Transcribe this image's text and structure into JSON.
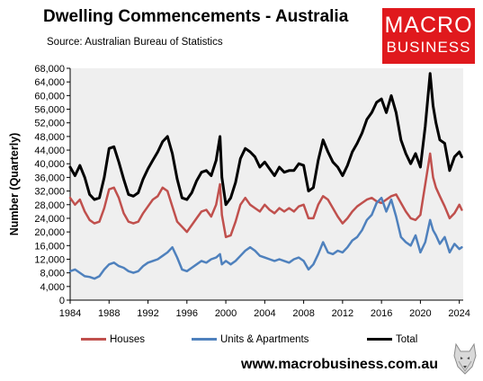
{
  "header": {
    "title": "Dwelling Commencements - Australia",
    "source": "Source:  Australian Bureau of Statistics"
  },
  "logo": {
    "line1": "MACRO",
    "line2": "BUSINESS",
    "color": "#e0191d"
  },
  "footer": {
    "website": "www.macrobusiness.com.au",
    "wolf_icon": "wolf-logo-icon"
  },
  "chart_data": {
    "type": "line",
    "title": "Dwelling Commencements - Australia",
    "ylabel": "Number (Quarterly)",
    "xlabel": "",
    "xlim": [
      1984,
      2024.4
    ],
    "ylim": [
      0,
      68000
    ],
    "x_ticks": [
      1984,
      1988,
      1992,
      1996,
      2000,
      2004,
      2008,
      2012,
      2016,
      2020,
      2024
    ],
    "y_ticks": [
      0,
      4000,
      8000,
      12000,
      16000,
      20000,
      24000,
      28000,
      32000,
      36000,
      40000,
      44000,
      48000,
      52000,
      56000,
      60000,
      64000,
      68000
    ],
    "y_tick_labels": [
      "0",
      "4,000",
      "8,000",
      "12,000",
      "16,000",
      "20,000",
      "24,000",
      "28,000",
      "32,000",
      "36,000",
      "40,000",
      "44,000",
      "48,000",
      "52,000",
      "56,000",
      "60,000",
      "64,000",
      "68,000"
    ],
    "grid": false,
    "background": "#efefef",
    "legend_position": "bottom",
    "series": [
      {
        "name": "Houses",
        "color": "#c0504d",
        "points": [
          [
            1984.0,
            30000
          ],
          [
            1984.5,
            28000
          ],
          [
            1985.0,
            29500
          ],
          [
            1985.5,
            26000
          ],
          [
            1986.0,
            23500
          ],
          [
            1986.5,
            22500
          ],
          [
            1987.0,
            23000
          ],
          [
            1987.5,
            27000
          ],
          [
            1988.0,
            32500
          ],
          [
            1988.5,
            33000
          ],
          [
            1989.0,
            30000
          ],
          [
            1989.5,
            25500
          ],
          [
            1990.0,
            23000
          ],
          [
            1990.5,
            22500
          ],
          [
            1991.0,
            23000
          ],
          [
            1991.5,
            25500
          ],
          [
            1992.0,
            27500
          ],
          [
            1992.5,
            29500
          ],
          [
            1993.0,
            30500
          ],
          [
            1993.5,
            33000
          ],
          [
            1994.0,
            32000
          ],
          [
            1994.5,
            27500
          ],
          [
            1995.0,
            23000
          ],
          [
            1995.5,
            21500
          ],
          [
            1996.0,
            20000
          ],
          [
            1996.5,
            22000
          ],
          [
            1997.0,
            24000
          ],
          [
            1997.5,
            26000
          ],
          [
            1998.0,
            26500
          ],
          [
            1998.5,
            24500
          ],
          [
            1999.0,
            28000
          ],
          [
            1999.4,
            34000
          ],
          [
            1999.6,
            25000
          ],
          [
            2000.0,
            18500
          ],
          [
            2000.5,
            19000
          ],
          [
            2001.0,
            23000
          ],
          [
            2001.5,
            28000
          ],
          [
            2002.0,
            30000
          ],
          [
            2002.5,
            28000
          ],
          [
            2003.0,
            27000
          ],
          [
            2003.5,
            26000
          ],
          [
            2004.0,
            28000
          ],
          [
            2004.5,
            26500
          ],
          [
            2005.0,
            25500
          ],
          [
            2005.5,
            27000
          ],
          [
            2006.0,
            26000
          ],
          [
            2006.5,
            27000
          ],
          [
            2007.0,
            26000
          ],
          [
            2007.5,
            27500
          ],
          [
            2008.0,
            28000
          ],
          [
            2008.5,
            24000
          ],
          [
            2009.0,
            24000
          ],
          [
            2009.5,
            28000
          ],
          [
            2010.0,
            30500
          ],
          [
            2010.5,
            29500
          ],
          [
            2011.0,
            27000
          ],
          [
            2011.5,
            24500
          ],
          [
            2012.0,
            22500
          ],
          [
            2012.5,
            24000
          ],
          [
            2013.0,
            26000
          ],
          [
            2013.5,
            27500
          ],
          [
            2014.0,
            28500
          ],
          [
            2014.5,
            29500
          ],
          [
            2015.0,
            30000
          ],
          [
            2015.5,
            29000
          ],
          [
            2016.0,
            28500
          ],
          [
            2016.5,
            29500
          ],
          [
            2017.0,
            30500
          ],
          [
            2017.5,
            31000
          ],
          [
            2018.0,
            28500
          ],
          [
            2018.5,
            26000
          ],
          [
            2019.0,
            24000
          ],
          [
            2019.5,
            23500
          ],
          [
            2020.0,
            25000
          ],
          [
            2020.5,
            34000
          ],
          [
            2021.0,
            43000
          ],
          [
            2021.3,
            36000
          ],
          [
            2021.6,
            33000
          ],
          [
            2022.0,
            30500
          ],
          [
            2022.5,
            27500
          ],
          [
            2023.0,
            24000
          ],
          [
            2023.5,
            25500
          ],
          [
            2024.0,
            28000
          ],
          [
            2024.25,
            26500
          ]
        ]
      },
      {
        "name": "Units & Apartments",
        "color": "#4f81bd",
        "points": [
          [
            1984.0,
            8500
          ],
          [
            1984.5,
            9000
          ],
          [
            1985.0,
            8000
          ],
          [
            1985.5,
            7000
          ],
          [
            1986.0,
            6800
          ],
          [
            1986.5,
            6300
          ],
          [
            1987.0,
            7000
          ],
          [
            1987.5,
            9000
          ],
          [
            1988.0,
            10500
          ],
          [
            1988.5,
            11000
          ],
          [
            1989.0,
            10000
          ],
          [
            1989.5,
            9500
          ],
          [
            1990.0,
            8500
          ],
          [
            1990.5,
            8000
          ],
          [
            1991.0,
            8500
          ],
          [
            1991.5,
            10000
          ],
          [
            1992.0,
            11000
          ],
          [
            1992.5,
            11500
          ],
          [
            1993.0,
            12000
          ],
          [
            1993.5,
            13000
          ],
          [
            1994.0,
            14000
          ],
          [
            1994.5,
            15500
          ],
          [
            1995.0,
            12500
          ],
          [
            1995.5,
            9000
          ],
          [
            1996.0,
            8500
          ],
          [
            1996.5,
            9500
          ],
          [
            1997.0,
            10500
          ],
          [
            1997.5,
            11500
          ],
          [
            1998.0,
            11000
          ],
          [
            1998.5,
            12000
          ],
          [
            1999.0,
            12500
          ],
          [
            1999.4,
            13500
          ],
          [
            1999.6,
            10500
          ],
          [
            2000.0,
            11500
          ],
          [
            2000.5,
            10500
          ],
          [
            2001.0,
            11500
          ],
          [
            2001.5,
            13000
          ],
          [
            2002.0,
            14500
          ],
          [
            2002.5,
            15500
          ],
          [
            2003.0,
            14500
          ],
          [
            2003.5,
            13000
          ],
          [
            2004.0,
            12500
          ],
          [
            2004.5,
            12000
          ],
          [
            2005.0,
            11500
          ],
          [
            2005.5,
            12000
          ],
          [
            2006.0,
            11500
          ],
          [
            2006.5,
            11000
          ],
          [
            2007.0,
            12000
          ],
          [
            2007.5,
            12500
          ],
          [
            2008.0,
            11500
          ],
          [
            2008.5,
            9000
          ],
          [
            2009.0,
            10500
          ],
          [
            2009.5,
            13500
          ],
          [
            2010.0,
            17000
          ],
          [
            2010.5,
            14000
          ],
          [
            2011.0,
            13500
          ],
          [
            2011.5,
            14500
          ],
          [
            2012.0,
            14000
          ],
          [
            2012.5,
            15500
          ],
          [
            2013.0,
            17500
          ],
          [
            2013.5,
            18500
          ],
          [
            2014.0,
            20500
          ],
          [
            2014.5,
            23500
          ],
          [
            2015.0,
            25000
          ],
          [
            2015.5,
            28500
          ],
          [
            2016.0,
            30000
          ],
          [
            2016.5,
            26000
          ],
          [
            2017.0,
            29500
          ],
          [
            2017.5,
            24500
          ],
          [
            2018.0,
            18500
          ],
          [
            2018.5,
            17000
          ],
          [
            2019.0,
            16000
          ],
          [
            2019.5,
            19000
          ],
          [
            2020.0,
            14000
          ],
          [
            2020.5,
            17000
          ],
          [
            2021.0,
            23500
          ],
          [
            2021.3,
            20500
          ],
          [
            2021.6,
            19000
          ],
          [
            2022.0,
            16500
          ],
          [
            2022.5,
            18500
          ],
          [
            2023.0,
            14000
          ],
          [
            2023.5,
            16500
          ],
          [
            2024.0,
            15000
          ],
          [
            2024.25,
            15500
          ]
        ]
      },
      {
        "name": "Total",
        "color": "#000000",
        "points": [
          [
            1984.0,
            39000
          ],
          [
            1984.5,
            36500
          ],
          [
            1985.0,
            39500
          ],
          [
            1985.5,
            36000
          ],
          [
            1986.0,
            31000
          ],
          [
            1986.5,
            29500
          ],
          [
            1987.0,
            30000
          ],
          [
            1987.5,
            36000
          ],
          [
            1988.0,
            44500
          ],
          [
            1988.5,
            45000
          ],
          [
            1989.0,
            40500
          ],
          [
            1989.5,
            35500
          ],
          [
            1990.0,
            31000
          ],
          [
            1990.5,
            30500
          ],
          [
            1991.0,
            31500
          ],
          [
            1991.5,
            35500
          ],
          [
            1992.0,
            38500
          ],
          [
            1992.5,
            41000
          ],
          [
            1993.0,
            43500
          ],
          [
            1993.5,
            46500
          ],
          [
            1994.0,
            48000
          ],
          [
            1994.5,
            43000
          ],
          [
            1995.0,
            35500
          ],
          [
            1995.5,
            30000
          ],
          [
            1996.0,
            29500
          ],
          [
            1996.5,
            31500
          ],
          [
            1997.0,
            35000
          ],
          [
            1997.5,
            37500
          ],
          [
            1998.0,
            38000
          ],
          [
            1998.5,
            36500
          ],
          [
            1999.0,
            41000
          ],
          [
            1999.4,
            48000
          ],
          [
            1999.6,
            36000
          ],
          [
            2000.0,
            28000
          ],
          [
            2000.5,
            30000
          ],
          [
            2001.0,
            34500
          ],
          [
            2001.5,
            41500
          ],
          [
            2002.0,
            44500
          ],
          [
            2002.5,
            43500
          ],
          [
            2003.0,
            42000
          ],
          [
            2003.5,
            39000
          ],
          [
            2004.0,
            40500
          ],
          [
            2004.5,
            38500
          ],
          [
            2005.0,
            36500
          ],
          [
            2005.5,
            39000
          ],
          [
            2006.0,
            37500
          ],
          [
            2006.5,
            38000
          ],
          [
            2007.0,
            38000
          ],
          [
            2007.5,
            40000
          ],
          [
            2008.0,
            39500
          ],
          [
            2008.5,
            32000
          ],
          [
            2009.0,
            33000
          ],
          [
            2009.5,
            41000
          ],
          [
            2010.0,
            47000
          ],
          [
            2010.5,
            43500
          ],
          [
            2011.0,
            40500
          ],
          [
            2011.5,
            39000
          ],
          [
            2012.0,
            36500
          ],
          [
            2012.5,
            39500
          ],
          [
            2013.0,
            43500
          ],
          [
            2013.5,
            46000
          ],
          [
            2014.0,
            49000
          ],
          [
            2014.5,
            53000
          ],
          [
            2015.0,
            55000
          ],
          [
            2015.5,
            58000
          ],
          [
            2016.0,
            59000
          ],
          [
            2016.5,
            55000
          ],
          [
            2017.0,
            60000
          ],
          [
            2017.5,
            55000
          ],
          [
            2018.0,
            47000
          ],
          [
            2018.5,
            43000
          ],
          [
            2019.0,
            40000
          ],
          [
            2019.5,
            43000
          ],
          [
            2020.0,
            39000
          ],
          [
            2020.5,
            51000
          ],
          [
            2021.0,
            66500
          ],
          [
            2021.3,
            57000
          ],
          [
            2021.6,
            52000
          ],
          [
            2022.0,
            47000
          ],
          [
            2022.5,
            46000
          ],
          [
            2023.0,
            38000
          ],
          [
            2023.5,
            42000
          ],
          [
            2024.0,
            43500
          ],
          [
            2024.25,
            42000
          ]
        ]
      }
    ]
  }
}
